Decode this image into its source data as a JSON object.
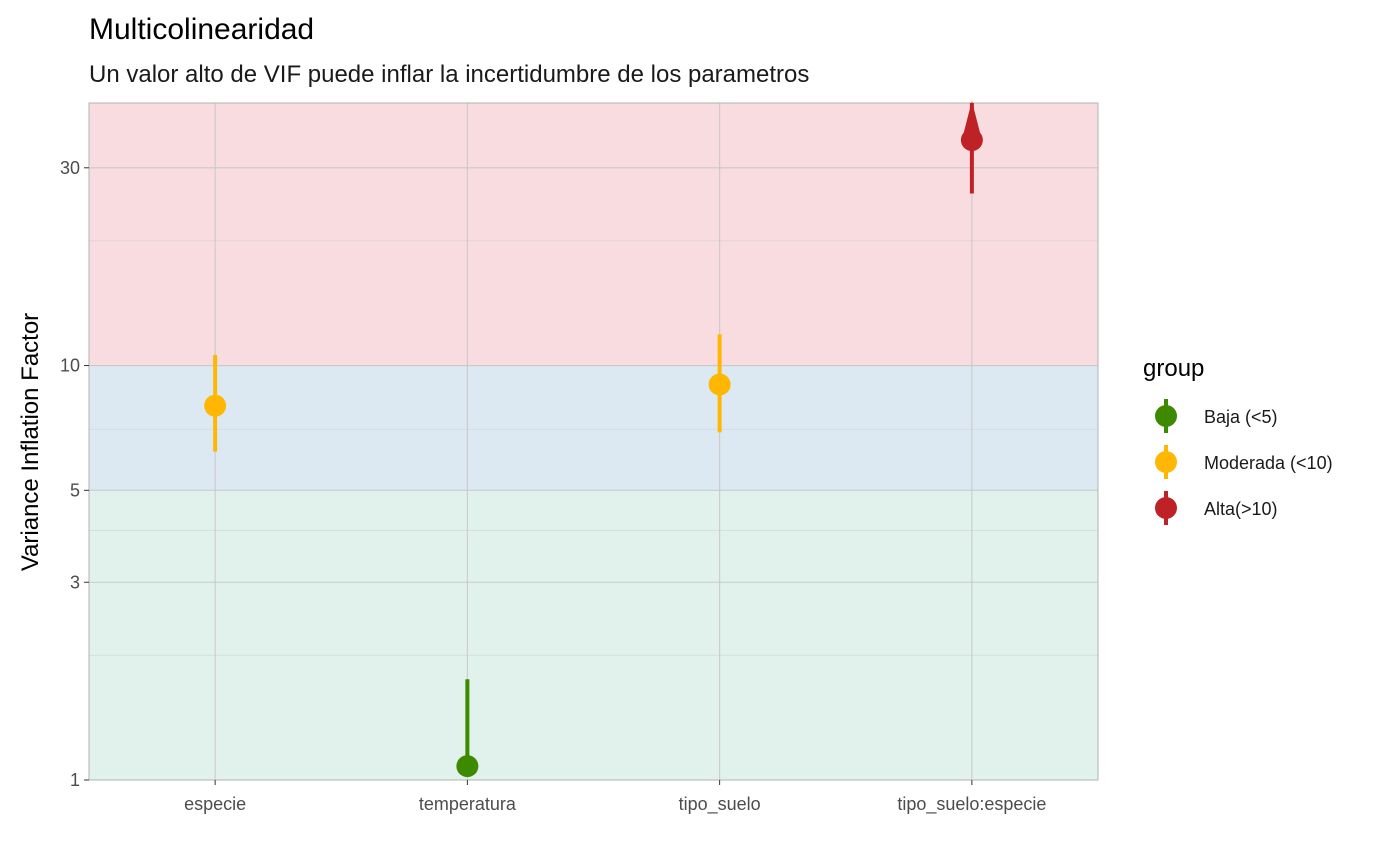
{
  "chart_data": {
    "type": "scatter",
    "title": "Multicolinearidad",
    "subtitle": "Un valor alto de VIF puede inflar la incertidumbre de los parametros",
    "xlabel": "",
    "ylabel": "Variance Inflation Factor",
    "y_scale": "log10",
    "ylim": [
      1,
      43
    ],
    "y_ticks": [
      1,
      3,
      5,
      10,
      30
    ],
    "y_tick_labels": [
      "1",
      "3",
      "5",
      "10",
      "30"
    ],
    "y_minor_ticks": [
      2,
      4,
      7,
      20
    ],
    "grid": true,
    "categories": [
      "especie",
      "temperatura",
      "tipo_suelo",
      "tipo_suelo:especie"
    ],
    "bands": [
      {
        "from": 1,
        "to": 5,
        "color": "#e1f2ec"
      },
      {
        "from": 5,
        "to": 10,
        "color": "#dce9f2"
      },
      {
        "from": 10,
        "to": 43,
        "color": "#f9dcdf"
      }
    ],
    "series": [
      {
        "name": "Baja (<5)",
        "color": "#3d8a00",
        "points": [
          {
            "category": "temperatura",
            "y": 1.08,
            "lower": 1.02,
            "upper": 1.75
          }
        ]
      },
      {
        "name": "Moderada (<10)",
        "color": "#ffb703",
        "points": [
          {
            "category": "especie",
            "y": 8.0,
            "lower": 6.2,
            "upper": 10.6
          },
          {
            "category": "tipo_suelo",
            "y": 9.0,
            "lower": 6.9,
            "upper": 11.9
          }
        ]
      },
      {
        "name": "Alta(>10)",
        "color": "#bf2226",
        "points": [
          {
            "category": "tipo_suelo:especie",
            "y": 35.0,
            "lower": 26.0,
            "upper": 43
          }
        ]
      }
    ],
    "legend": {
      "title": "group",
      "position": "right"
    }
  }
}
